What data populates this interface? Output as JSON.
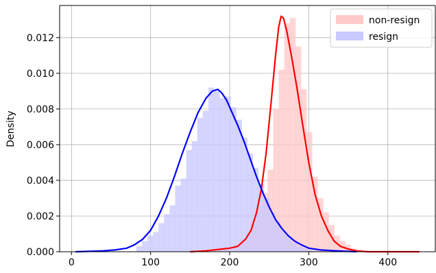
{
  "chart_data": {
    "type": "area",
    "title": "",
    "xlabel": "",
    "ylabel": "Density",
    "xlim": [
      -15,
      460
    ],
    "ylim": [
      0,
      0.0138
    ],
    "xticks": [
      0,
      100,
      200,
      300,
      400
    ],
    "yticks": [
      "0.000",
      "0.002",
      "0.004",
      "0.006",
      "0.008",
      "0.010",
      "0.012"
    ],
    "grid": true,
    "legend_position": "top-right",
    "bin_width": 7,
    "series": [
      {
        "name": "non-resign",
        "hist_color": "#ffc9c9",
        "line_color": "#ff0000",
        "bins": [
          [
            185,
            0.00015
          ],
          [
            192,
            0.0002
          ],
          [
            199,
            0.00025
          ],
          [
            206,
            0.0004
          ],
          [
            213,
            0.0007
          ],
          [
            220,
            0.001
          ],
          [
            227,
            0.0016
          ],
          [
            234,
            0.0025
          ],
          [
            241,
            0.0033
          ],
          [
            248,
            0.0046
          ],
          [
            255,
            0.008
          ],
          [
            262,
            0.0102
          ],
          [
            269,
            0.0128
          ],
          [
            276,
            0.0131
          ],
          [
            283,
            0.0115
          ],
          [
            290,
            0.0091
          ],
          [
            297,
            0.0067
          ],
          [
            304,
            0.0042
          ],
          [
            311,
            0.003
          ],
          [
            318,
            0.0022
          ],
          [
            325,
            0.0015
          ],
          [
            332,
            0.0009
          ],
          [
            339,
            0.0006
          ],
          [
            346,
            0.0004
          ],
          [
            353,
            0.0002
          ],
          [
            360,
            0.0001
          ]
        ],
        "kde": [
          [
            150,
            0.0
          ],
          [
            170,
            5e-05
          ],
          [
            180,
            0.0001
          ],
          [
            190,
            0.00015
          ],
          [
            200,
            0.0002
          ],
          [
            210,
            0.0003
          ],
          [
            220,
            0.0007
          ],
          [
            227,
            0.0012
          ],
          [
            234,
            0.0022
          ],
          [
            240,
            0.0035
          ],
          [
            246,
            0.0055
          ],
          [
            252,
            0.0082
          ],
          [
            258,
            0.011
          ],
          [
            262,
            0.0126
          ],
          [
            265,
            0.0132
          ],
          [
            268,
            0.0131
          ],
          [
            272,
            0.0124
          ],
          [
            278,
            0.011
          ],
          [
            285,
            0.0092
          ],
          [
            292,
            0.0072
          ],
          [
            300,
            0.005
          ],
          [
            308,
            0.0032
          ],
          [
            316,
            0.002
          ],
          [
            324,
            0.0012
          ],
          [
            332,
            0.0006
          ],
          [
            340,
            0.0003
          ],
          [
            350,
            0.00015
          ],
          [
            360,
            5e-05
          ],
          [
            375,
            0.0
          ],
          [
            440,
            0.0
          ]
        ]
      },
      {
        "name": "resign",
        "hist_color": "#c9c9ff",
        "line_color": "#0000ff",
        "bins": [
          [
            82,
            0.0003
          ],
          [
            89,
            0.0006
          ],
          [
            96,
            0.0009
          ],
          [
            103,
            0.0011
          ],
          [
            110,
            0.0016
          ],
          [
            117,
            0.0021
          ],
          [
            124,
            0.0026
          ],
          [
            131,
            0.0037
          ],
          [
            138,
            0.0041
          ],
          [
            145,
            0.0057
          ],
          [
            152,
            0.0062
          ],
          [
            159,
            0.0075
          ],
          [
            166,
            0.0079
          ],
          [
            173,
            0.0092
          ],
          [
            180,
            0.009
          ],
          [
            187,
            0.0086
          ],
          [
            194,
            0.0087
          ],
          [
            201,
            0.0081
          ],
          [
            208,
            0.0074
          ],
          [
            215,
            0.0064
          ],
          [
            222,
            0.0055
          ],
          [
            229,
            0.0047
          ],
          [
            236,
            0.0038
          ],
          [
            243,
            0.003
          ],
          [
            250,
            0.0022
          ],
          [
            257,
            0.0017
          ],
          [
            264,
            0.0012
          ],
          [
            271,
            0.0009
          ],
          [
            278,
            0.0005
          ],
          [
            285,
            0.0003
          ],
          [
            292,
            0.0002
          ],
          [
            299,
            0.0001
          ]
        ],
        "kde": [
          [
            5,
            0.0
          ],
          [
            20,
            2e-05
          ],
          [
            40,
            5e-05
          ],
          [
            55,
            0.0001
          ],
          [
            70,
            0.0002
          ],
          [
            80,
            0.0004
          ],
          [
            90,
            0.0007
          ],
          [
            100,
            0.0012
          ],
          [
            110,
            0.002
          ],
          [
            120,
            0.003
          ],
          [
            130,
            0.0042
          ],
          [
            140,
            0.0055
          ],
          [
            150,
            0.0067
          ],
          [
            160,
            0.0078
          ],
          [
            170,
            0.0086
          ],
          [
            178,
            0.009
          ],
          [
            185,
            0.0091
          ],
          [
            190,
            0.0089
          ],
          [
            196,
            0.0085
          ],
          [
            203,
            0.0078
          ],
          [
            210,
            0.0071
          ],
          [
            218,
            0.0062
          ],
          [
            226,
            0.0052
          ],
          [
            234,
            0.0042
          ],
          [
            242,
            0.0033
          ],
          [
            250,
            0.0025
          ],
          [
            258,
            0.0018
          ],
          [
            266,
            0.0013
          ],
          [
            274,
            0.0009
          ],
          [
            282,
            0.0006
          ],
          [
            290,
            0.0004
          ],
          [
            300,
            0.0002
          ],
          [
            315,
            0.0001
          ],
          [
            335,
            5e-05
          ],
          [
            360,
            0.0
          ]
        ]
      }
    ]
  }
}
